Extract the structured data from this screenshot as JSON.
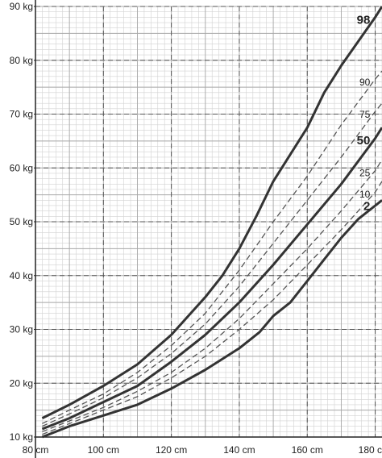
{
  "chart_data": {
    "type": "line",
    "title": "",
    "xlabel": "",
    "ylabel": "",
    "xlim": [
      80,
      182
    ],
    "ylim": [
      10,
      90
    ],
    "x_ticks": [
      80,
      100,
      120,
      140,
      160,
      180
    ],
    "x_tick_labels": [
      "80 cm",
      "100 cm",
      "120 cm",
      "140 cm",
      "160 cm",
      "180 c"
    ],
    "y_ticks": [
      10,
      20,
      30,
      40,
      50,
      60,
      70,
      80,
      90
    ],
    "y_tick_labels": [
      "10 kg",
      "20 kg",
      "30 kg",
      "40 kg",
      "50 kg",
      "60 kg",
      "70 kg",
      "80 kg",
      "90 kg"
    ],
    "grid": true,
    "legend": "none",
    "series": [
      {
        "name": "98",
        "style": "solid",
        "weight": "heavy",
        "x": [
          82,
          90,
          100,
          110,
          120,
          130,
          135,
          140,
          145,
          150,
          155,
          160,
          165,
          170,
          175,
          180,
          182
        ],
        "y": [
          13.5,
          16,
          19.5,
          23.5,
          29,
          36,
          40,
          45,
          51,
          57.5,
          62.5,
          67.5,
          74,
          79,
          83.5,
          88,
          90
        ]
      },
      {
        "name": "90",
        "style": "dashed",
        "weight": "light",
        "x": [
          82,
          90,
          100,
          110,
          120,
          130,
          140,
          150,
          160,
          170,
          180,
          182
        ],
        "y": [
          12.5,
          15,
          18,
          22,
          27,
          33,
          41,
          50,
          58.5,
          68,
          76.5,
          78
        ]
      },
      {
        "name": "75",
        "style": "dashed",
        "weight": "light",
        "x": [
          82,
          90,
          100,
          110,
          120,
          130,
          140,
          150,
          160,
          170,
          180,
          182
        ],
        "y": [
          12,
          14.3,
          17.3,
          21,
          25.5,
          31,
          38,
          46,
          54,
          62,
          70.5,
          72
        ]
      },
      {
        "name": "50",
        "style": "solid",
        "weight": "heavy",
        "x": [
          82,
          90,
          100,
          110,
          120,
          130,
          140,
          150,
          160,
          170,
          180,
          182
        ],
        "y": [
          11.5,
          13.5,
          16.5,
          19.5,
          24,
          29,
          35,
          42,
          49.5,
          57,
          65.5,
          67.5
        ]
      },
      {
        "name": "25",
        "style": "dashed",
        "weight": "light",
        "x": [
          82,
          90,
          100,
          110,
          120,
          130,
          140,
          150,
          160,
          170,
          180,
          182
        ],
        "y": [
          11,
          13,
          15.5,
          18.5,
          22,
          26.5,
          32,
          38.5,
          45,
          52,
          59.5,
          61.5
        ]
      },
      {
        "name": "10",
        "style": "dashed",
        "weight": "light",
        "x": [
          82,
          90,
          100,
          110,
          120,
          130,
          140,
          150,
          160,
          170,
          180,
          182
        ],
        "y": [
          10.5,
          12.5,
          15,
          17.5,
          21,
          25,
          30,
          35.5,
          42,
          48.5,
          55.5,
          57.5
        ]
      },
      {
        "name": "2",
        "style": "solid",
        "weight": "heavy",
        "x": [
          82,
          90,
          100,
          110,
          120,
          130,
          140,
          146,
          150,
          155,
          160,
          165,
          170,
          175,
          180,
          182
        ],
        "y": [
          10,
          12,
          14,
          16,
          19,
          22.5,
          26.5,
          29.5,
          32.5,
          35,
          39,
          43,
          47,
          50.5,
          53,
          54
        ]
      }
    ]
  }
}
